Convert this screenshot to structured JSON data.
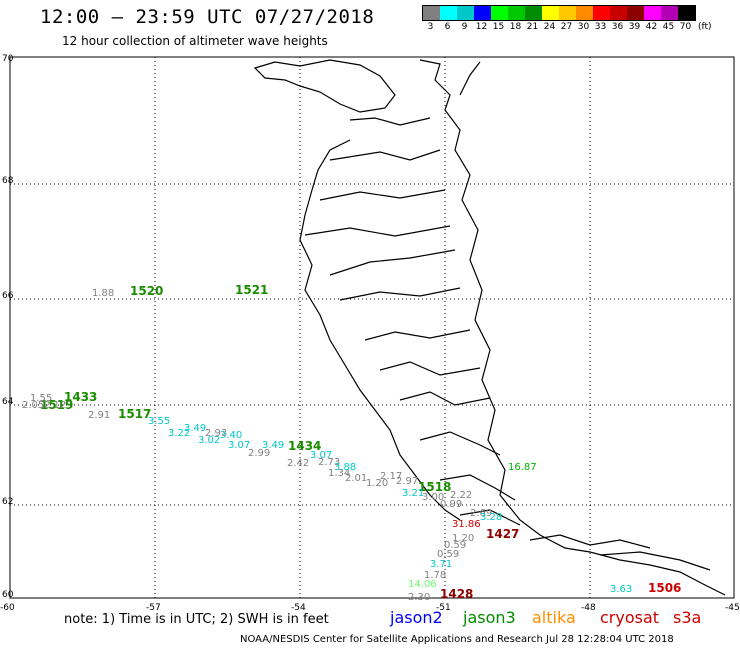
{
  "header": {
    "title": "12:00 – 23:59 UTC 07/27/2018",
    "subtitle": "12 hour collection of altimeter wave heights"
  },
  "legend": {
    "unit": "(ft)",
    "colors": [
      "#808080",
      "#00ffff",
      "#00c8c8",
      "#0000ff",
      "#00ff00",
      "#00c800",
      "#008c00",
      "#ffff00",
      "#ffc800",
      "#ff8c00",
      "#ff0000",
      "#c80000",
      "#8c0000",
      "#ff00ff",
      "#b400b4",
      "#000000"
    ],
    "labels": [
      "3",
      "6",
      "9",
      "12",
      "15",
      "18",
      "21",
      "24",
      "27",
      "30",
      "33",
      "36",
      "39",
      "42",
      "45",
      "70"
    ]
  },
  "axes": {
    "lat_labels": [
      "70",
      "68",
      "66",
      "64",
      "62",
      "60"
    ],
    "lon_labels": [
      "-60",
      "-57",
      "-54",
      "-51",
      "-48",
      "-45"
    ]
  },
  "passes": [
    {
      "label": "1433",
      "color": "#1a8c00"
    },
    {
      "label": "1519",
      "color": "#1a8c00"
    },
    {
      "label": "1517",
      "color": "#1a8c00"
    },
    {
      "label": "1434",
      "color": "#1a8c00"
    },
    {
      "label": "1518",
      "color": "#1a8c00"
    },
    {
      "label": "1520",
      "color": "#1a8c00"
    },
    {
      "label": "1521",
      "color": "#1a8c00"
    },
    {
      "label": "1427",
      "color": "#8c0000"
    },
    {
      "label": "1428",
      "color": "#8c0000"
    },
    {
      "label": "1506",
      "color": "#cc0000"
    }
  ],
  "observations": [
    {
      "v": "1.88",
      "color": "#808080"
    },
    {
      "v": "1.55",
      "color": "#808080"
    },
    {
      "v": "2.05",
      "color": "#808080"
    },
    {
      "v": "2.12",
      "color": "#808080"
    },
    {
      "v": "2.91",
      "color": "#808080"
    },
    {
      "v": "2.93",
      "color": "#808080"
    },
    {
      "v": "2.99",
      "color": "#808080"
    },
    {
      "v": "2.42",
      "color": "#808080"
    },
    {
      "v": "2.73",
      "color": "#808080"
    },
    {
      "v": "1.34",
      "color": "#808080"
    },
    {
      "v": "2.01",
      "color": "#808080"
    },
    {
      "v": "2.17",
      "color": "#808080"
    },
    {
      "v": "1.20",
      "color": "#808080"
    },
    {
      "v": "2.97",
      "color": "#808080"
    },
    {
      "v": "3.00",
      "color": "#808080"
    },
    {
      "v": "2.22",
      "color": "#808080"
    },
    {
      "v": "0.99",
      "color": "#808080"
    },
    {
      "v": "2.69",
      "color": "#808080"
    },
    {
      "v": "1.20",
      "color": "#808080"
    },
    {
      "v": "0.59",
      "color": "#808080"
    },
    {
      "v": "0.59",
      "color": "#808080"
    },
    {
      "v": "1.78",
      "color": "#808080"
    },
    {
      "v": "2.30",
      "color": "#808080"
    },
    {
      "v": "3.49",
      "color": "#00c8c8"
    },
    {
      "v": "3.22",
      "color": "#00c8c8"
    },
    {
      "v": "3.40",
      "color": "#00c8c8"
    },
    {
      "v": "3.55",
      "color": "#00c8c8"
    },
    {
      "v": "3.07",
      "color": "#00c8c8"
    },
    {
      "v": "3.02",
      "color": "#00c8c8"
    },
    {
      "v": "3.49",
      "color": "#00c8c8"
    },
    {
      "v": "3.07",
      "color": "#00c8c8"
    },
    {
      "v": "3.88",
      "color": "#00c8c8"
    },
    {
      "v": "3.21",
      "color": "#00c8c8"
    },
    {
      "v": "3.28",
      "color": "#00c8c8"
    },
    {
      "v": "3.71",
      "color": "#00c8c8"
    },
    {
      "v": "3.63",
      "color": "#00c8c8"
    },
    {
      "v": "31.86",
      "color": "#cc0000"
    },
    {
      "v": "16.87",
      "color": "#00b400"
    },
    {
      "v": "14.06",
      "color": "#66ff66"
    }
  ],
  "note": "note:  1) Time is in UTC;  2) SWH is in feet",
  "satellites": [
    {
      "name": "jason2",
      "color": "#0000ff"
    },
    {
      "name": "jason3",
      "color": "#008c00"
    },
    {
      "name": "altika",
      "color": "#ff8c00"
    },
    {
      "name": "cryosat",
      "color": "#cc0000"
    },
    {
      "name": "s3a",
      "color": "#cc0000"
    }
  ],
  "footer": "NOAA/NESDIS Center for Satellite Applications and Research     Jul 28 12:28:04 UTC 2018"
}
